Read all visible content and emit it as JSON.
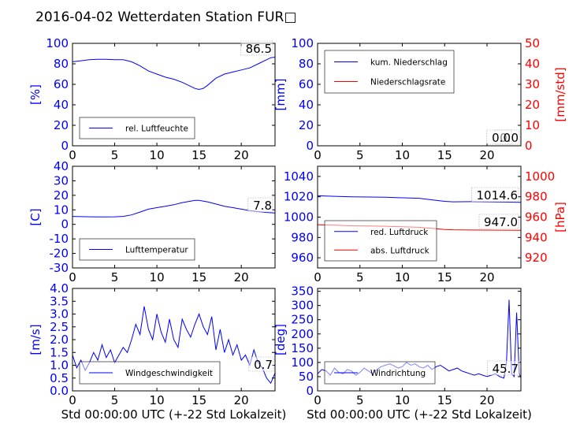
{
  "title": "2016-04-02 Wetterdaten Station FUR□",
  "colors": {
    "blue": "#0000ff",
    "red": "#ff0000",
    "black": "#000000"
  },
  "chart_data": [
    {
      "id": "humidity",
      "type": "line",
      "xlim": [
        0,
        24
      ],
      "x_ticks": [
        0,
        5,
        10,
        15,
        20
      ],
      "ylim": [
        0,
        100
      ],
      "y_ticks": [
        0,
        20,
        40,
        60,
        80,
        100
      ],
      "ylabel": "[%]",
      "legend": "bottom-left",
      "value_box": "86.5",
      "series": [
        {
          "name": "rel. Luftfeuchte",
          "color": "#0000ff",
          "x": [
            0,
            1,
            2,
            3,
            4,
            5,
            6,
            7,
            8,
            9,
            10,
            11,
            12,
            13,
            14,
            14.5,
            15,
            15.5,
            16,
            17,
            18,
            19,
            20,
            21,
            22,
            23,
            23.5,
            24
          ],
          "y": [
            82,
            83,
            84,
            84.5,
            84.5,
            84,
            84,
            82,
            78,
            73,
            70,
            67,
            65,
            62,
            58,
            56,
            55,
            56,
            59,
            66,
            70,
            72,
            74,
            76,
            80,
            84,
            86,
            86.5
          ]
        }
      ]
    },
    {
      "id": "precip",
      "type": "line",
      "xlim": [
        0,
        24
      ],
      "x_ticks": [
        0,
        5,
        10,
        15,
        20
      ],
      "ylim": [
        0,
        100
      ],
      "y_ticks": [
        0,
        20,
        40,
        60,
        80,
        100
      ],
      "ylabel": "[mm]",
      "y2lim": [
        0,
        50
      ],
      "y2_ticks": [
        0,
        10,
        20,
        30,
        40,
        50
      ],
      "y2label": "[mm/std]",
      "legend": "top-left",
      "value_box": "0.0",
      "value_box2": "0.0",
      "series": [
        {
          "name": "kum. Niederschlag",
          "color": "#0000ff",
          "x": [
            0,
            24
          ],
          "y": [
            0,
            0
          ]
        },
        {
          "name": "Niederschlagsrate",
          "color": "#ff0000",
          "axis": "right",
          "x": [
            0,
            24
          ],
          "y": [
            0,
            0
          ]
        }
      ]
    },
    {
      "id": "temperature",
      "type": "line",
      "xlim": [
        0,
        24
      ],
      "x_ticks": [
        0,
        5,
        10,
        15,
        20
      ],
      "ylim": [
        -30,
        40
      ],
      "y_ticks": [
        -30,
        -20,
        -10,
        0,
        10,
        20,
        30,
        40
      ],
      "ylabel": "[C]",
      "legend": "bottom-left",
      "value_box": "7.8",
      "series": [
        {
          "name": "Lufttemperatur",
          "color": "#0000ff",
          "x": [
            0,
            1,
            2,
            3,
            4,
            5,
            6,
            7,
            8,
            9,
            10,
            11,
            12,
            13,
            14,
            14.5,
            15,
            15.5,
            16,
            17,
            18,
            19,
            20,
            21,
            22,
            23,
            24
          ],
          "y": [
            5.5,
            5.3,
            5.2,
            5.1,
            5.1,
            5.2,
            5.5,
            6.5,
            8.5,
            10.5,
            11.5,
            12.5,
            13.5,
            15,
            16,
            16.5,
            16.5,
            16,
            15.5,
            14,
            12.5,
            11.5,
            10.5,
            9.5,
            8.8,
            8.2,
            7.8
          ]
        }
      ]
    },
    {
      "id": "pressure",
      "type": "line",
      "xlim": [
        0,
        24
      ],
      "x_ticks": [
        0,
        5,
        10,
        15,
        20
      ],
      "ylim": [
        950,
        1050
      ],
      "y_ticks": [
        960,
        980,
        1000,
        1020,
        1040
      ],
      "y2lim": [
        910,
        1010
      ],
      "y2_ticks": [
        920,
        940,
        960,
        980,
        1000
      ],
      "y2label": "[hPa]",
      "legend": "bottom-left",
      "value_box": "1014.6",
      "value_box2": "947.0",
      "series": [
        {
          "name": "red. Luftdruck",
          "color": "#0000ff",
          "x": [
            0,
            2,
            4,
            6,
            8,
            10,
            12,
            14,
            15,
            16,
            18,
            20,
            22,
            24
          ],
          "y": [
            1021,
            1020.5,
            1020,
            1019.8,
            1019.5,
            1019,
            1018.5,
            1016.5,
            1015.5,
            1015,
            1015.2,
            1015,
            1014.8,
            1014.6
          ]
        },
        {
          "name": "abs. Luftdruck",
          "color": "#ff0000",
          "axis": "right",
          "x": [
            0,
            2,
            4,
            6,
            8,
            10,
            12,
            14,
            15,
            16,
            18,
            20,
            22,
            24
          ],
          "y": [
            952.5,
            952,
            951.5,
            951.3,
            951,
            950.5,
            950,
            948.5,
            947.8,
            947.5,
            947.3,
            947.2,
            947.1,
            947.0
          ]
        }
      ]
    },
    {
      "id": "windspeed",
      "type": "line",
      "xlim": [
        0,
        24
      ],
      "x_ticks": [
        0,
        5,
        10,
        15,
        20
      ],
      "ylim": [
        0,
        4
      ],
      "y_ticks": [
        "0.0",
        "0.5",
        "1.0",
        "1.5",
        "2.0",
        "2.5",
        "3.0",
        "3.5",
        "4.0"
      ],
      "ylabel": "[m/s]",
      "xlabel": "Std 00:00:00 UTC (+-22 Std Lokalzeit)",
      "legend": "bottom-left",
      "value_box": "0.7",
      "series": [
        {
          "name": "Windgeschwindigkeit",
          "color": "#0000ff",
          "x": [
            0,
            0.5,
            1,
            1.5,
            2,
            2.5,
            3,
            3.5,
            4,
            4.5,
            5,
            5.5,
            6,
            6.5,
            7,
            7.5,
            8,
            8.5,
            9,
            9.5,
            10,
            10.5,
            11,
            11.5,
            12,
            12.5,
            13,
            13.5,
            14,
            14.5,
            15,
            15.5,
            16,
            16.5,
            17,
            17.5,
            18,
            18.5,
            19,
            19.5,
            20,
            20.5,
            21,
            21.5,
            22,
            22.5,
            23,
            23.5,
            24
          ],
          "y": [
            1.4,
            0.9,
            1.2,
            0.8,
            1.1,
            1.5,
            1.2,
            1.8,
            1.3,
            1.6,
            1.1,
            1.4,
            1.7,
            1.5,
            2.0,
            2.6,
            2.2,
            3.3,
            2.4,
            2.0,
            3.0,
            2.3,
            1.9,
            2.8,
            2.0,
            1.7,
            2.8,
            2.4,
            2.1,
            2.6,
            3.0,
            2.5,
            2.2,
            2.9,
            1.6,
            2.4,
            1.5,
            2.0,
            1.4,
            1.8,
            1.2,
            1.4,
            1.0,
            1.6,
            1.1,
            0.9,
            0.5,
            0.3,
            0.7
          ]
        }
      ]
    },
    {
      "id": "winddir",
      "type": "line",
      "xlim": [
        0,
        24
      ],
      "x_ticks": [
        0,
        5,
        10,
        15,
        20
      ],
      "ylim": [
        0,
        360
      ],
      "y_ticks": [
        0,
        50,
        100,
        150,
        200,
        250,
        300,
        350
      ],
      "ylabel": "[deg]",
      "xlabel": "Std 00:00:00 UTC (+-22 Std Lokalzeit)",
      "legend": "bottom-left",
      "value_box": "45.7",
      "series": [
        {
          "name": "Windrichtung",
          "color": "#0000ff",
          "x": [
            0,
            0.5,
            1,
            1.5,
            2,
            2.5,
            3,
            3.5,
            4,
            4.5,
            5,
            5.5,
            6,
            6.5,
            7,
            7.5,
            8,
            8.5,
            9,
            9.5,
            10,
            10.5,
            11,
            11.5,
            12,
            12.5,
            13,
            13.5,
            14,
            14.5,
            15,
            15.5,
            16,
            16.5,
            17,
            17.5,
            18,
            18.5,
            19,
            19.5,
            20,
            20.5,
            21,
            21.5,
            22,
            22.3,
            22.6,
            22.9,
            23.2,
            23.5,
            23.8,
            24
          ],
          "y": [
            60,
            75,
            70,
            55,
            80,
            65,
            60,
            75,
            70,
            55,
            65,
            80,
            70,
            60,
            75,
            85,
            90,
            95,
            88,
            80,
            85,
            100,
            90,
            95,
            85,
            80,
            90,
            75,
            85,
            90,
            80,
            70,
            75,
            80,
            70,
            65,
            60,
            55,
            60,
            55,
            50,
            55,
            60,
            50,
            45,
            100,
            320,
            60,
            50,
            275,
            60,
            45.7
          ]
        }
      ]
    }
  ]
}
